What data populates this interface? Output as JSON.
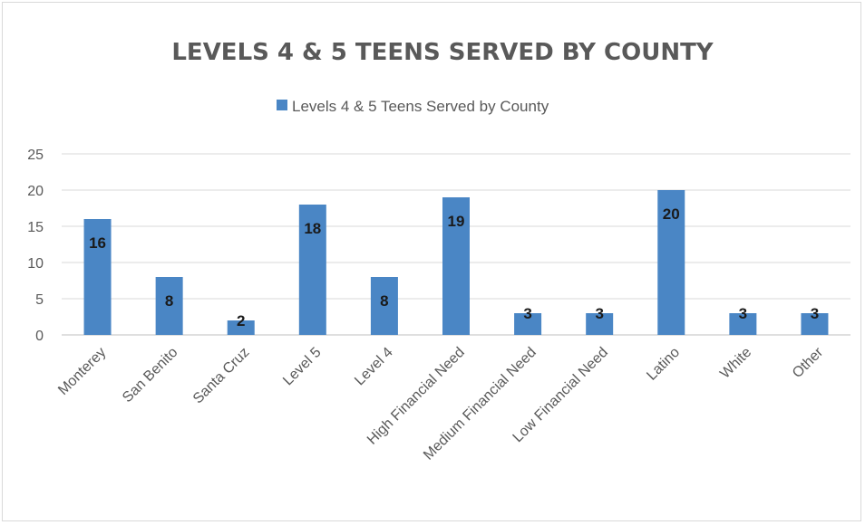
{
  "chart_data": {
    "type": "bar",
    "title": "LEVELS 4 & 5 TEENS SERVED BY COUNTY",
    "xlabel": "",
    "ylabel": "",
    "categories": [
      "Monterey",
      "San Benito",
      "Santa Cruz",
      "Level 5",
      "Level 4",
      "High Financial Need",
      "Medium Financial Need",
      "Low Financial Need",
      "Latino",
      "White",
      "Other"
    ],
    "series": [
      {
        "name": "Levels 4 & 5 Teens Served by County",
        "values": [
          16,
          8,
          2,
          18,
          8,
          19,
          3,
          3,
          20,
          3,
          3
        ],
        "color": "#4a86c5"
      }
    ],
    "ylim": [
      0,
      25
    ],
    "yticks": [
      0,
      5,
      10,
      15,
      20,
      25
    ],
    "grid": true,
    "legend": "top-center",
    "data_labels": true
  }
}
